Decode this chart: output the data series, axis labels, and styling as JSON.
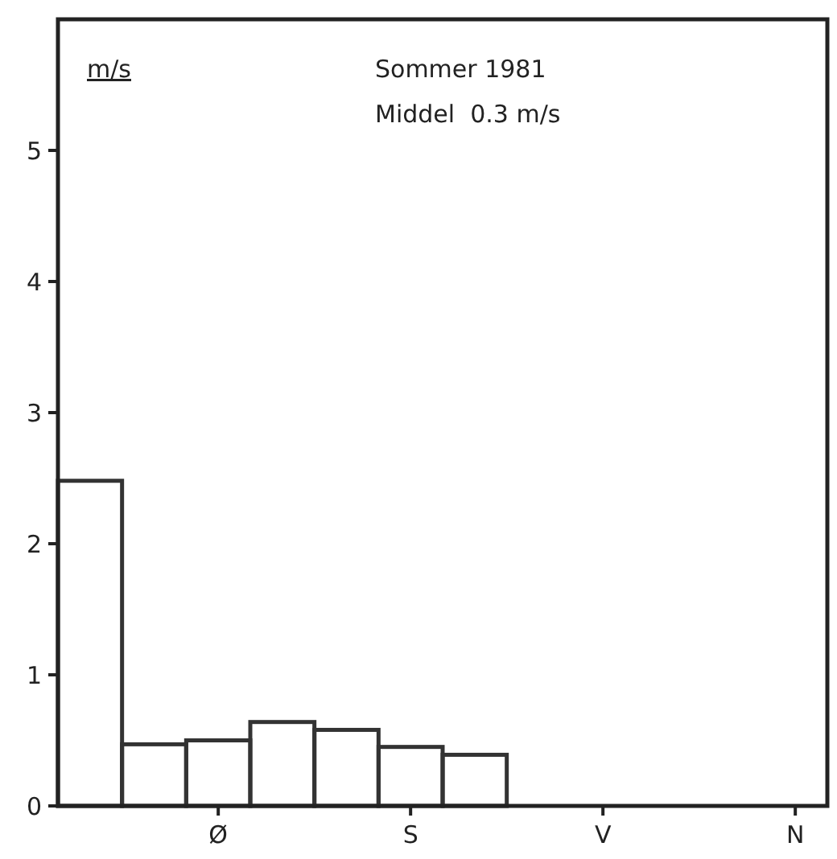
{
  "chart_data": {
    "type": "bar",
    "title": "Sommer 1981",
    "subtitle": "Middel  0.3 m/s",
    "ylabel": "m/s",
    "color": "#333333",
    "categories": [
      null,
      null,
      "Ø",
      null,
      null,
      "S",
      null,
      null,
      "V",
      null,
      null,
      "N"
    ],
    "values": [
      2.48,
      0.47,
      0.5,
      0.64,
      0.58,
      0.45,
      0.39,
      0,
      0,
      0,
      0,
      0
    ],
    "ylim": [
      0,
      6
    ],
    "yticks": [
      0,
      1,
      2,
      3,
      4,
      5
    ],
    "grid": false
  }
}
